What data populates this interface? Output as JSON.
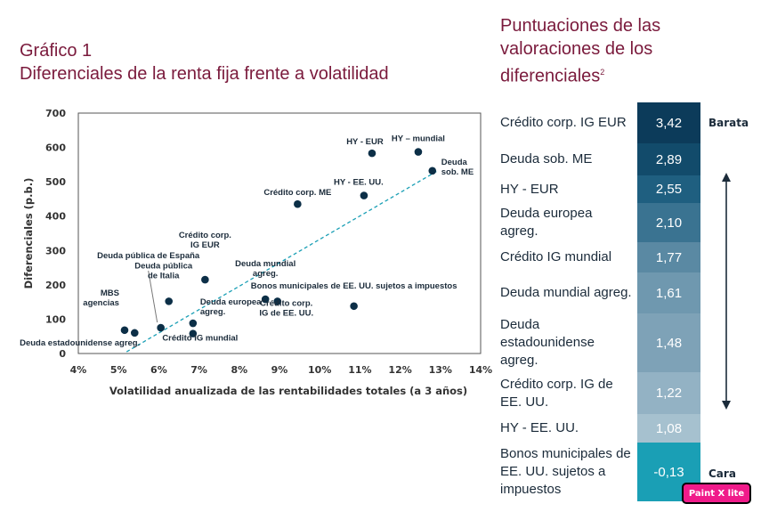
{
  "chart_title_line1": "Gráfico 1",
  "chart_title_line2": "Diferenciales de la renta fija frente a volatilidad",
  "panel_title_line1": "Puntuaciones de las",
  "panel_title_line2": "valoraciones de los",
  "panel_title_line3": "diferenciales",
  "panel_title_sup": "2",
  "chart_data": {
    "type": "scatter",
    "xlabel": "Volatilidad anualizada de las rentabilidades totales (a 3 años)",
    "ylabel": "Diferenciales (p.b.)",
    "xlim": [
      4,
      14
    ],
    "ylim": [
      0,
      700
    ],
    "xticks": [
      "4%",
      "5%",
      "6%",
      "7%",
      "8%",
      "9%",
      "10%",
      "11%",
      "12%",
      "13%",
      "14%"
    ],
    "yticks": [
      "0",
      "100",
      "200",
      "300",
      "400",
      "500",
      "600",
      "700"
    ],
    "trendline": {
      "x": [
        5.2,
        12.9
      ],
      "y": [
        5,
        530
      ]
    },
    "points": [
      {
        "x": 5.15,
        "y": 68,
        "label": [
          "MBS",
          "agencias"
        ]
      },
      {
        "x": 5.4,
        "y": 60,
        "label": [
          "Deuda estadounidense agreg."
        ]
      },
      {
        "x": 6.05,
        "y": 75,
        "label": [
          "Deuda pública de España"
        ]
      },
      {
        "x": 6.25,
        "y": 152,
        "label": [
          "Deuda pública",
          "de Italia"
        ]
      },
      {
        "x": 6.85,
        "y": 88,
        "label": [
          "Deuda europea",
          "agreg."
        ]
      },
      {
        "x": 6.85,
        "y": 58,
        "label": [
          "Crédito IG mundial"
        ]
      },
      {
        "x": 7.15,
        "y": 215,
        "label": [
          "Crédito corp.",
          "IG EUR"
        ]
      },
      {
        "x": 8.65,
        "y": 158,
        "label": [
          "Deuda mundial",
          "agreg."
        ]
      },
      {
        "x": 8.95,
        "y": 152,
        "label": [
          "Crédito corp.",
          "IG de EE. UU."
        ]
      },
      {
        "x": 9.45,
        "y": 435,
        "label": [
          "Crédito corp. ME"
        ]
      },
      {
        "x": 10.85,
        "y": 138,
        "label": [
          "Bonos municipales de EE. UU. sujetos a impuestos"
        ]
      },
      {
        "x": 11.1,
        "y": 460,
        "label": [
          "HY - EE. UU."
        ]
      },
      {
        "x": 11.3,
        "y": 583,
        "label": [
          "HY - EUR"
        ]
      },
      {
        "x": 12.45,
        "y": 587,
        "label": [
          "HY – mundial"
        ]
      },
      {
        "x": 12.8,
        "y": 532,
        "label": [
          "Deuda",
          "sob. ME"
        ]
      }
    ]
  },
  "scores": [
    {
      "name": "Crédito corp. IG EUR",
      "value": "3,42",
      "color": "#0c3b5a"
    },
    {
      "name": "Deuda sob. ME",
      "value": "2,89",
      "color": "#124b6b"
    },
    {
      "name": "HY - EUR",
      "value": "2,55",
      "color": "#1f5f80"
    },
    {
      "name": "Deuda europea agreg.",
      "value": "2,10",
      "color": "#3a7391"
    },
    {
      "name": "Crédito IG mundial",
      "value": "1,77",
      "color": "#5a89a3"
    },
    {
      "name": "Deuda mundial agreg.",
      "value": "1,61",
      "color": "#6f98af"
    },
    {
      "name": "Deuda estadounidense agreg.",
      "value": "1,48",
      "color": "#7ea2b7"
    },
    {
      "name": "Crédito corp. IG de EE. UU.",
      "value": "1,22",
      "color": "#93b2c4"
    },
    {
      "name": "HY - EE. UU.",
      "value": "1,08",
      "color": "#a6c1cf"
    },
    {
      "name": "Bonos municipales de EE. UU. sujetos a impuestos",
      "value": "-0,13",
      "color": "#1a9fb5"
    }
  ],
  "side_labels": {
    "top": "Barata",
    "bottom": "Cara"
  },
  "badge": "Paint X lite"
}
